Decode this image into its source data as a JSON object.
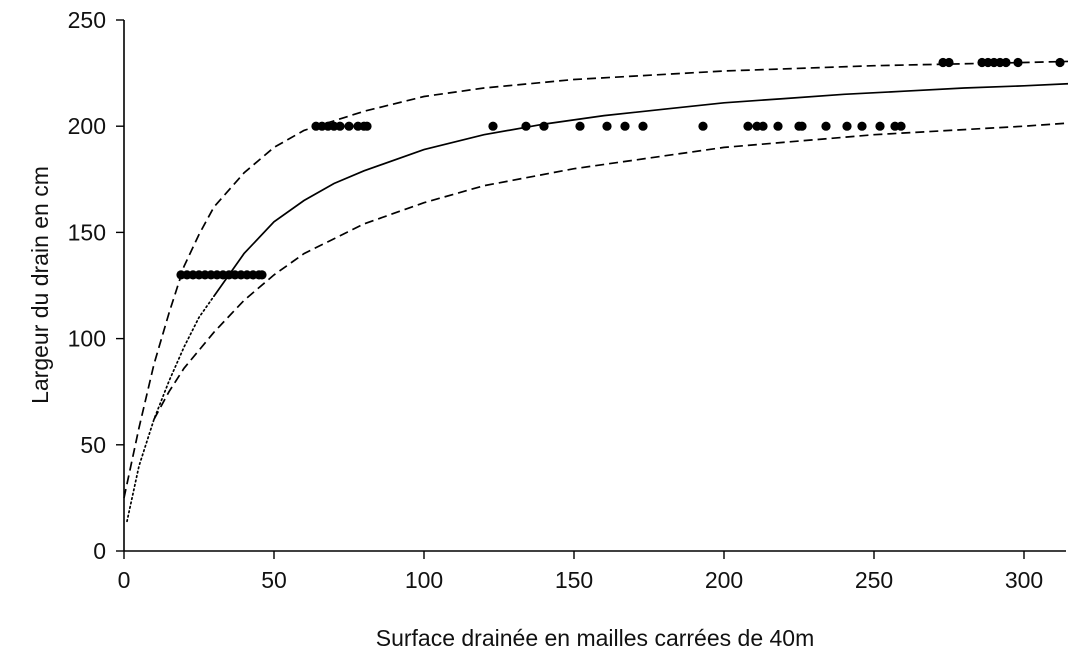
{
  "chart_data": {
    "type": "scatter",
    "title": "",
    "xlabel": "Surface drainée en mailles carrées de 40m",
    "ylabel": "Largeur du drain en cm",
    "xlim": [
      0,
      315
    ],
    "ylim": [
      0,
      250
    ],
    "x_ticks": [
      0,
      50,
      100,
      150,
      200,
      250,
      300
    ],
    "y_ticks": [
      0,
      50,
      100,
      150,
      200,
      250
    ],
    "grid": false,
    "legend": "none",
    "series": [
      {
        "style": "points",
        "points": [
          [
            19,
            130
          ],
          [
            21,
            130
          ],
          [
            23,
            130
          ],
          [
            25,
            130
          ],
          [
            27,
            130
          ],
          [
            29,
            130
          ],
          [
            31,
            130
          ],
          [
            33,
            130
          ],
          [
            35,
            130
          ],
          [
            37,
            130
          ],
          [
            39,
            130
          ],
          [
            41,
            130
          ],
          [
            43,
            130
          ],
          [
            45,
            130
          ],
          [
            46,
            130
          ],
          [
            64,
            200
          ],
          [
            66,
            200
          ],
          [
            68,
            200
          ],
          [
            70,
            200
          ],
          [
            72,
            200
          ],
          [
            75,
            200
          ],
          [
            78,
            200
          ],
          [
            80,
            200
          ],
          [
            81,
            200
          ],
          [
            123,
            200
          ],
          [
            134,
            200
          ],
          [
            140,
            200
          ],
          [
            152,
            200
          ],
          [
            161,
            200
          ],
          [
            167,
            200
          ],
          [
            173,
            200
          ],
          [
            193,
            200
          ],
          [
            208,
            200
          ],
          [
            211,
            200
          ],
          [
            213,
            200
          ],
          [
            218,
            200
          ],
          [
            225,
            200
          ],
          [
            226,
            200
          ],
          [
            234,
            200
          ],
          [
            241,
            200
          ],
          [
            246,
            200
          ],
          [
            252,
            200
          ],
          [
            257,
            200
          ],
          [
            259,
            200
          ],
          [
            273,
            230
          ],
          [
            275,
            230
          ],
          [
            286,
            230
          ],
          [
            288,
            230
          ],
          [
            290,
            230
          ],
          [
            292,
            230
          ],
          [
            294,
            230
          ],
          [
            298,
            230
          ],
          [
            312,
            230
          ]
        ]
      },
      {
        "style": "solid",
        "points": [
          [
            30,
            120
          ],
          [
            40,
            140
          ],
          [
            50,
            155
          ],
          [
            60,
            165
          ],
          [
            70,
            173
          ],
          [
            80,
            179
          ],
          [
            100,
            189
          ],
          [
            120,
            196
          ],
          [
            140,
            201
          ],
          [
            160,
            205
          ],
          [
            180,
            208
          ],
          [
            200,
            211
          ],
          [
            220,
            213
          ],
          [
            240,
            215
          ],
          [
            260,
            216.5
          ],
          [
            280,
            218
          ],
          [
            300,
            219
          ],
          [
            315,
            220
          ]
        ]
      },
      {
        "style": "dotted",
        "points": [
          [
            1,
            14
          ],
          [
            5,
            40
          ],
          [
            10,
            62
          ],
          [
            15,
            80
          ],
          [
            20,
            96
          ],
          [
            25,
            110
          ],
          [
            30,
            120
          ]
        ]
      },
      {
        "style": "dashed",
        "points": [
          [
            0,
            25
          ],
          [
            5,
            58
          ],
          [
            10,
            88
          ],
          [
            15,
            112
          ],
          [
            20,
            134
          ],
          [
            25,
            149
          ],
          [
            30,
            162
          ],
          [
            40,
            178
          ],
          [
            50,
            190
          ],
          [
            60,
            198
          ],
          [
            80,
            207
          ],
          [
            100,
            214
          ],
          [
            120,
            218
          ],
          [
            150,
            222
          ],
          [
            200,
            226
          ],
          [
            250,
            228.5
          ],
          [
            300,
            230
          ],
          [
            315,
            230.5
          ]
        ]
      },
      {
        "style": "dashed",
        "points": [
          [
            10,
            62
          ],
          [
            15,
            75
          ],
          [
            20,
            86
          ],
          [
            30,
            103
          ],
          [
            40,
            118
          ],
          [
            50,
            130
          ],
          [
            60,
            140
          ],
          [
            80,
            154
          ],
          [
            100,
            164
          ],
          [
            120,
            172
          ],
          [
            150,
            180
          ],
          [
            200,
            190
          ],
          [
            250,
            196
          ],
          [
            300,
            200
          ],
          [
            315,
            201.5
          ]
        ]
      }
    ]
  }
}
